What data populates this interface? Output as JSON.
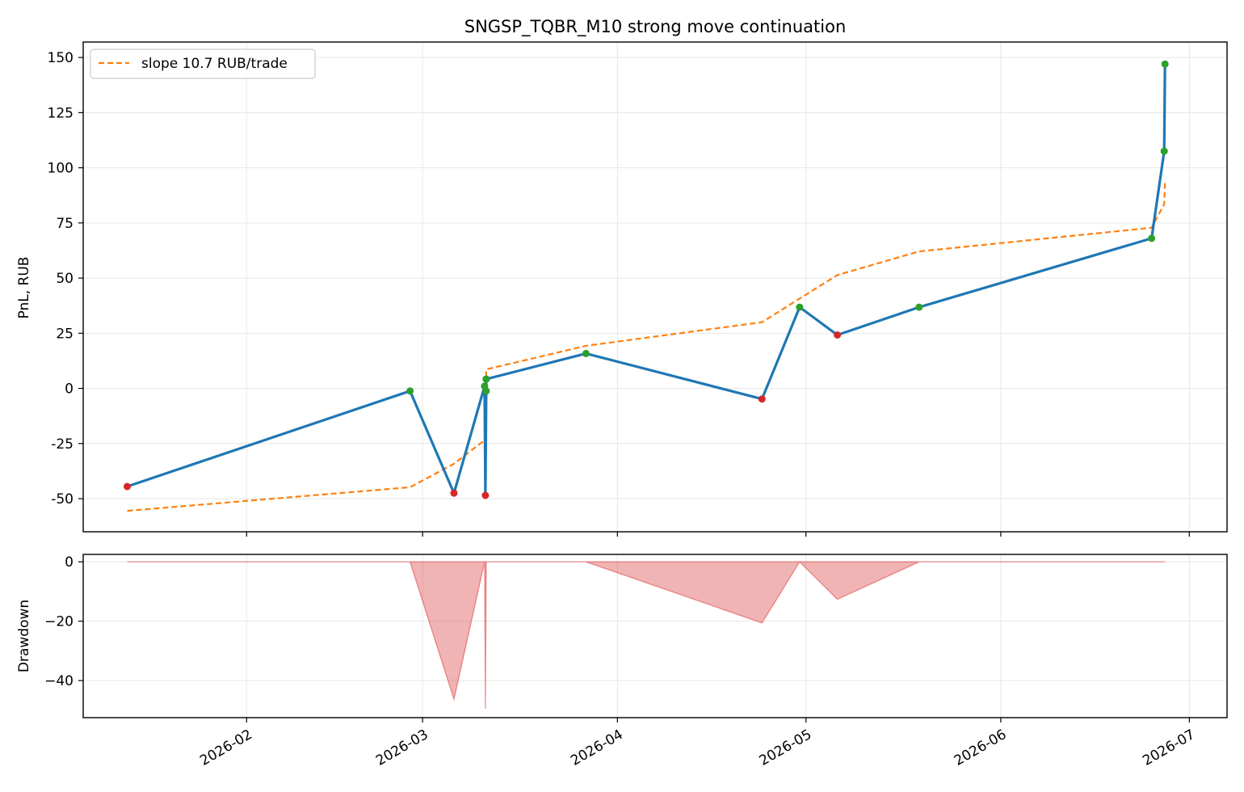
{
  "chart_data": [
    {
      "type": "line",
      "title": "SNGSP_TQBR_M10 strong move continuation",
      "ylabel": "PnL, RUB",
      "xlabel": "",
      "x_type": "date",
      "xlim": [
        "2026-01-06",
        "2026-07-07"
      ],
      "ylim": [
        -65,
        157
      ],
      "yticks": [
        -50,
        -25,
        0,
        25,
        50,
        75,
        100,
        125,
        150
      ],
      "grid": true,
      "legend": {
        "placement": "top-left",
        "entries": [
          "slope 10.7 RUB/trade"
        ]
      },
      "colors": {
        "equity": "#1f77b4",
        "trend": "#ff7f0e",
        "win": "#2ca02c",
        "loss": "#d62728"
      },
      "series": [
        {
          "role": "equity",
          "x": [
            "2026-01-13",
            "2026-02-27",
            "2026-03-06",
            "2026-03-11",
            "2026-03-11",
            "2026-03-11",
            "2026-03-11",
            "2026-03-11",
            "2026-03-27",
            "2026-04-24",
            "2026-04-30",
            "2026-05-06",
            "2026-05-19",
            "2026-06-25",
            "2026-06-27",
            "2026-06-27"
          ],
          "values": [
            -44.5,
            -1.2,
            -47.5,
            1.0,
            -48.5,
            -1.2,
            4.2,
            4.2,
            15.8,
            -4.8,
            36.8,
            24.2,
            36.8,
            68.0,
            107.5,
            147.0
          ],
          "outcome": [
            "loss",
            "win",
            "loss",
            "win",
            "loss",
            "win",
            "win",
            "win",
            "win",
            "loss",
            "win",
            "loss",
            "win",
            "win",
            "win",
            "win"
          ]
        },
        {
          "name": "slope 10.7 RUB/trade",
          "role": "trend",
          "style": "dashed",
          "x": [
            "2026-01-13",
            "2026-02-27",
            "2026-03-06",
            "2026-03-11",
            "2026-03-11",
            "2026-03-11",
            "2026-03-11",
            "2026-03-11",
            "2026-03-27",
            "2026-04-24",
            "2026-04-30",
            "2026-05-06",
            "2026-05-19",
            "2026-06-25",
            "2026-06-27",
            "2026-06-27"
          ],
          "values": [
            -55.5,
            -44.8,
            -34.2,
            -23.5,
            -12.8,
            -2.1,
            8.6,
            8.6,
            19.3,
            30.0,
            40.7,
            51.4,
            62.1,
            72.8,
            83.5,
            94.2
          ]
        }
      ]
    },
    {
      "type": "area",
      "ylabel": "Drawdown",
      "xlabel": "",
      "x_type": "date",
      "xlim": [
        "2026-01-06",
        "2026-07-07"
      ],
      "xticks": [
        "2026-02",
        "2026-03",
        "2026-04",
        "2026-05",
        "2026-06",
        "2026-07"
      ],
      "ylim": [
        -52.5,
        2.5
      ],
      "yticks": [
        -40,
        -20,
        0
      ],
      "grid": true,
      "color": "#d62728",
      "series": [
        {
          "role": "drawdown",
          "x": [
            "2026-01-13",
            "2026-02-27",
            "2026-03-06",
            "2026-03-11",
            "2026-03-11",
            "2026-03-11",
            "2026-03-11",
            "2026-03-11",
            "2026-03-27",
            "2026-04-24",
            "2026-04-30",
            "2026-05-06",
            "2026-05-19",
            "2026-06-25",
            "2026-06-27",
            "2026-06-27"
          ],
          "values": [
            0,
            0,
            -46.3,
            0,
            -49.5,
            -2.2,
            0,
            0,
            0,
            -20.6,
            0,
            -12.6,
            0,
            0,
            0,
            0
          ]
        }
      ]
    }
  ]
}
